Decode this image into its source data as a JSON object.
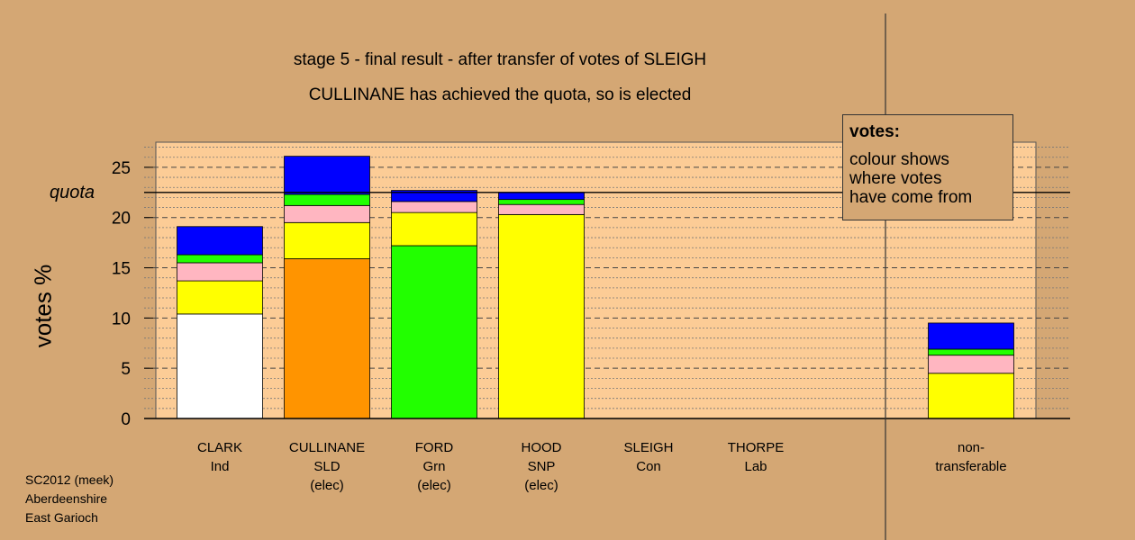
{
  "title_line1": "stage 5 - final result - after transfer of votes of SLEIGH",
  "title_line2": "CULLINANE has achieved the quota, so is elected",
  "legend": {
    "title": "votes:",
    "lines": [
      "colour shows",
      "where votes",
      "have come from"
    ]
  },
  "footer": {
    "line1": "SC2012 (meek)",
    "line2": "Aberdeenshire",
    "line3": "East Garioch"
  },
  "colors": {
    "background": "#d4a774",
    "plot_background": "#fccc96",
    "white": "#ffffff",
    "yellow": "#ffff00",
    "pink": "#ffb6c1",
    "green": "#22ff00",
    "blue": "#0000ff",
    "orange": "#ff9400"
  },
  "chart_data": {
    "type": "bar",
    "stacked": true,
    "ylabel": "votes %",
    "ylim": [
      0,
      27.5
    ],
    "yticks": [
      "0",
      "5",
      "10",
      "15",
      "20",
      "25"
    ],
    "quota": 22.5,
    "quota_label": "quota",
    "categories": [
      {
        "name": "CLARK",
        "party": "Ind",
        "status": ""
      },
      {
        "name": "CULLINANE",
        "party": "SLD",
        "status": "(elec)"
      },
      {
        "name": "FORD",
        "party": "Grn",
        "status": "(elec)"
      },
      {
        "name": "HOOD",
        "party": "SNP",
        "status": "(elec)"
      },
      {
        "name": "SLEIGH",
        "party": "Con",
        "status": ""
      },
      {
        "name": "THORPE",
        "party": "Lab",
        "status": ""
      },
      {
        "name": "non-",
        "party": "transferable",
        "status": ""
      }
    ],
    "stacks": [
      [
        {
          "color": "white",
          "value": 10.4
        },
        {
          "color": "yellow",
          "value": 3.3
        },
        {
          "color": "pink",
          "value": 1.8
        },
        {
          "color": "green",
          "value": 0.8
        },
        {
          "color": "blue",
          "value": 2.8
        }
      ],
      [
        {
          "color": "orange",
          "value": 15.9
        },
        {
          "color": "yellow",
          "value": 3.6
        },
        {
          "color": "pink",
          "value": 1.7
        },
        {
          "color": "green",
          "value": 1.1
        },
        {
          "color": "blue",
          "value": 3.8
        }
      ],
      [
        {
          "color": "green",
          "value": 17.2
        },
        {
          "color": "yellow",
          "value": 3.3
        },
        {
          "color": "pink",
          "value": 1.1
        },
        {
          "color": "blue",
          "value": 1.1
        }
      ],
      [
        {
          "color": "yellow",
          "value": 20.3
        },
        {
          "color": "pink",
          "value": 1.0
        },
        {
          "color": "green",
          "value": 0.5
        },
        {
          "color": "blue",
          "value": 0.7
        }
      ],
      [],
      [],
      [
        {
          "color": "yellow",
          "value": 4.5
        },
        {
          "color": "pink",
          "value": 1.8
        },
        {
          "color": "green",
          "value": 0.6
        },
        {
          "color": "blue",
          "value": 2.6
        }
      ]
    ]
  }
}
